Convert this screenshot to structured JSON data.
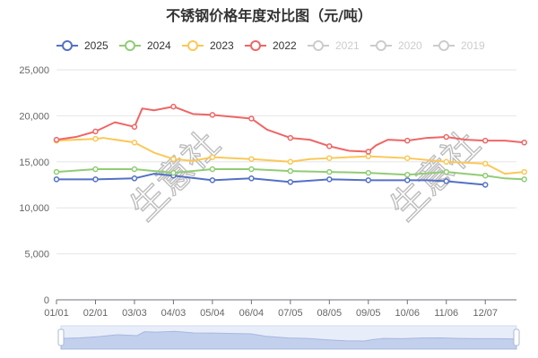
{
  "chart_data": {
    "type": "line",
    "title": "不锈钢价格年度对比图（元/吨）",
    "xlabel": "",
    "ylabel": "",
    "ylim": [
      0,
      25000
    ],
    "yticks": [
      0,
      5000,
      10000,
      15000,
      20000,
      25000
    ],
    "ytick_labels": [
      "0",
      "5,000",
      "10,000",
      "15,000",
      "20,000",
      "25,000"
    ],
    "categories": [
      "01/01",
      "02/01",
      "03/03",
      "04/03",
      "05/04",
      "06/04",
      "07/05",
      "08/05",
      "09/05",
      "10/06",
      "11/06",
      "12/07"
    ],
    "grid": true,
    "legend_position": "top-left",
    "watermark": "生意社",
    "series": [
      {
        "name": "2025",
        "color": "#5470c6",
        "visible": true,
        "x": [
          0,
          1,
          2,
          2.5,
          3,
          4,
          5,
          6,
          7,
          8,
          9,
          9.5,
          10,
          10.5,
          11
        ],
        "values": [
          13100,
          13100,
          13200,
          13700,
          13500,
          13000,
          13200,
          12800,
          13100,
          13000,
          13000,
          13000,
          12900,
          12700,
          12500
        ]
      },
      {
        "name": "2024",
        "color": "#91cc75",
        "visible": true,
        "x": [
          0,
          1,
          2,
          3,
          4,
          5,
          6,
          7,
          8,
          9,
          10,
          11,
          11.5,
          12
        ],
        "values": [
          13900,
          14200,
          14200,
          13800,
          14200,
          14200,
          14000,
          13900,
          13800,
          13600,
          13900,
          13500,
          13200,
          13100
        ]
      },
      {
        "name": "2023",
        "color": "#fac858",
        "visible": true,
        "x": [
          0,
          1,
          1.2,
          2,
          2.5,
          3,
          3.5,
          4,
          5,
          6,
          6.5,
          7,
          8,
          9,
          10,
          11,
          11.5,
          12
        ],
        "values": [
          17300,
          17500,
          17600,
          17100,
          16000,
          15300,
          15100,
          15500,
          15300,
          15000,
          15300,
          15400,
          15600,
          15400,
          15000,
          14800,
          13700,
          13900
        ]
      },
      {
        "name": "2022",
        "color": "#ee6666",
        "visible": true,
        "x": [
          0,
          0.5,
          1,
          1.5,
          1.8,
          2,
          2.2,
          2.5,
          3,
          3.5,
          4,
          5,
          5.4,
          6,
          6.5,
          7,
          7.5,
          8,
          8.2,
          8.5,
          9,
          9.5,
          10,
          10.5,
          11,
          11.5,
          12
        ],
        "values": [
          17400,
          17700,
          18300,
          19300,
          19000,
          18800,
          20800,
          20600,
          21000,
          20200,
          20100,
          19700,
          18500,
          17600,
          17400,
          16700,
          16200,
          16100,
          16800,
          17400,
          17300,
          17600,
          17700,
          17400,
          17300,
          17300,
          17100
        ]
      },
      {
        "name": "2021",
        "color": "#cccccc",
        "visible": false
      },
      {
        "name": "2020",
        "color": "#cccccc",
        "visible": false
      },
      {
        "name": "2019",
        "color": "#cccccc",
        "visible": false
      }
    ]
  }
}
